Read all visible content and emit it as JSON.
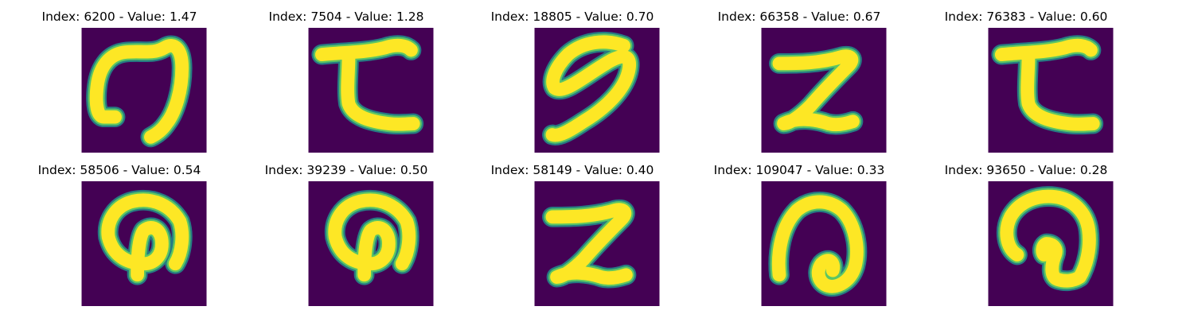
{
  "figure": {
    "colors": {
      "background": "#440154",
      "teal": "#21918c",
      "green": "#5ec962",
      "yellow": "#fde725"
    },
    "panels": [
      {
        "title": "Index: 6200 - Value: 1.47",
        "glyph": "hook-left",
        "index": 6200,
        "value": 1.47
      },
      {
        "title": "Index: 7504 - Value: 1.28",
        "glyph": "z-bar",
        "index": 7504,
        "value": 1.28
      },
      {
        "title": "Index: 18805 - Value: 0.70",
        "glyph": "curl",
        "index": 18805,
        "value": 0.7
      },
      {
        "title": "Index: 66358 - Value: 0.67",
        "glyph": "z-stroke",
        "index": 66358,
        "value": 0.67
      },
      {
        "title": "Index: 76383 - Value: 0.60",
        "glyph": "z-bar",
        "index": 76383,
        "value": 0.6
      },
      {
        "title": "Index: 58506 - Value: 0.54",
        "glyph": "loop-stem",
        "index": 58506,
        "value": 0.54
      },
      {
        "title": "Index: 39239 - Value: 0.50",
        "glyph": "loop-stem",
        "index": 39239,
        "value": 0.5
      },
      {
        "title": "Index: 58149 - Value: 0.40",
        "glyph": "z-stroke",
        "index": 58149,
        "value": 0.4
      },
      {
        "title": "Index: 109047 - Value: 0.33",
        "glyph": "spiral",
        "index": 109047,
        "value": 0.33
      },
      {
        "title": "Index: 93650 - Value: 0.28",
        "glyph": "loop-hook",
        "index": 93650,
        "value": 0.28
      }
    ]
  }
}
